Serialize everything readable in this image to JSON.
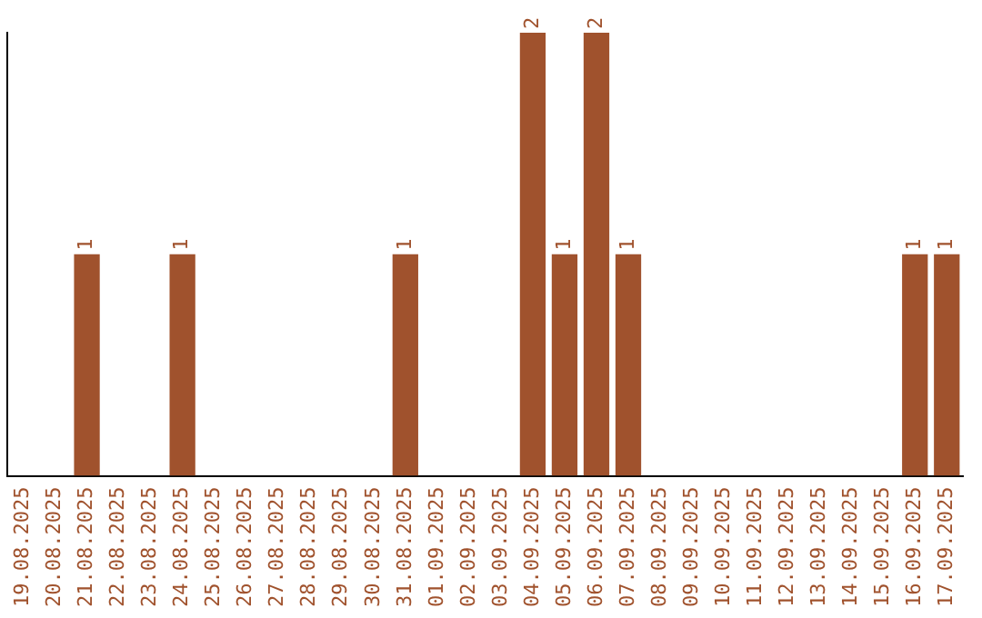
{
  "chart_data": {
    "type": "bar",
    "categories": [
      "19.08.2025",
      "20.08.2025",
      "21.08.2025",
      "22.08.2025",
      "23.08.2025",
      "24.08.2025",
      "25.08.2025",
      "26.08.2025",
      "27.08.2025",
      "28.08.2025",
      "29.08.2025",
      "30.08.2025",
      "31.08.2025",
      "01.09.2025",
      "02.09.2025",
      "03.09.2025",
      "04.09.2025",
      "05.09.2025",
      "06.09.2025",
      "07.09.2025",
      "08.09.2025",
      "09.09.2025",
      "10.09.2025",
      "11.09.2025",
      "12.09.2025",
      "13.09.2025",
      "14.09.2025",
      "15.09.2025",
      "16.09.2025",
      "17.09.2025"
    ],
    "values": [
      0,
      0,
      1,
      0,
      0,
      1,
      0,
      0,
      0,
      0,
      0,
      0,
      1,
      0,
      0,
      0,
      2,
      1,
      2,
      1,
      0,
      0,
      0,
      0,
      0,
      0,
      0,
      0,
      1,
      1
    ],
    "value_labels": [
      null,
      null,
      "1",
      null,
      null,
      "1",
      null,
      null,
      null,
      null,
      null,
      null,
      "1",
      null,
      null,
      null,
      "2",
      "1",
      "2",
      "1",
      null,
      null,
      null,
      null,
      null,
      null,
      null,
      null,
      "1",
      "1"
    ],
    "color": "#a0522d",
    "tick_labels": "x",
    "grid": false,
    "legend": false
  }
}
